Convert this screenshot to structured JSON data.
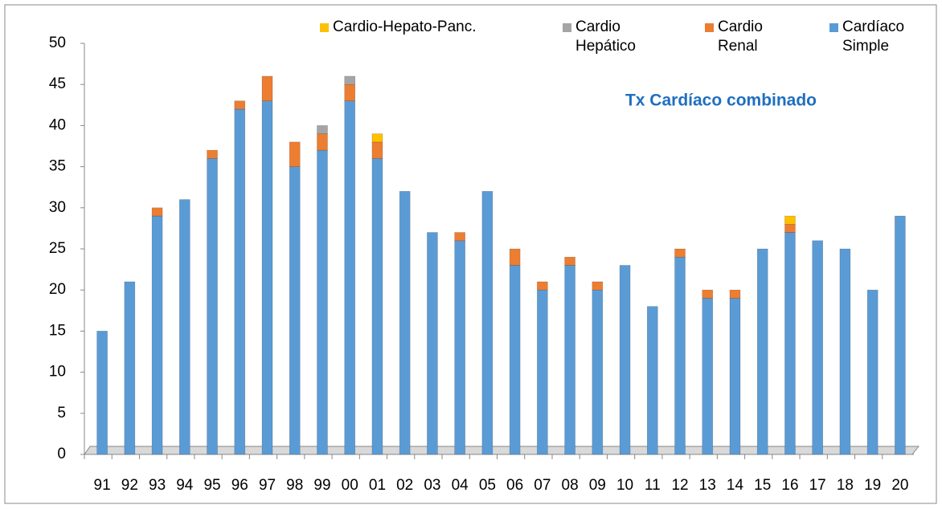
{
  "chart_data": {
    "type": "stacked_bar",
    "annotation": "Tx Cardíaco combinado",
    "categories": [
      "91",
      "92",
      "93",
      "94",
      "95",
      "96",
      "97",
      "98",
      "99",
      "00",
      "01",
      "02",
      "03",
      "04",
      "05",
      "06",
      "07",
      "08",
      "09",
      "10",
      "11",
      "12",
      "13",
      "14",
      "15",
      "16",
      "17",
      "18",
      "19",
      "20"
    ],
    "series": [
      {
        "name": "Cardíaco Simple",
        "color": "#5b9bd5",
        "values": [
          15,
          21,
          29,
          31,
          36,
          42,
          43,
          35,
          37,
          43,
          36,
          32,
          27,
          26,
          32,
          23,
          20,
          23,
          20,
          23,
          18,
          24,
          19,
          19,
          25,
          27,
          26,
          25,
          20,
          29
        ]
      },
      {
        "name": "Cardio Renal",
        "color": "#ed7d31",
        "values": [
          0,
          0,
          1,
          0,
          1,
          1,
          3,
          3,
          2,
          2,
          2,
          0,
          0,
          1,
          0,
          2,
          1,
          1,
          1,
          0,
          0,
          1,
          1,
          1,
          0,
          1,
          0,
          0,
          0,
          0
        ]
      },
      {
        "name": "Cardio Hepático",
        "color": "#a5a5a5",
        "values": [
          0,
          0,
          0,
          0,
          0,
          0,
          0,
          0,
          1,
          1,
          0,
          0,
          0,
          0,
          0,
          0,
          0,
          0,
          0,
          0,
          0,
          0,
          0,
          0,
          0,
          0,
          0,
          0,
          0,
          0
        ]
      },
      {
        "name": "Cardio-Hepato-Panc.",
        "color": "#ffc000",
        "values": [
          0,
          0,
          0,
          0,
          0,
          0,
          0,
          0,
          0,
          0,
          1,
          0,
          0,
          0,
          0,
          0,
          0,
          0,
          0,
          0,
          0,
          0,
          0,
          0,
          0,
          1,
          0,
          0,
          0,
          0
        ]
      }
    ],
    "ylim": [
      0,
      50
    ],
    "yticks": [
      0,
      5,
      10,
      15,
      20,
      25,
      30,
      35,
      40,
      45,
      50
    ],
    "grid": false,
    "legend": "top"
  }
}
